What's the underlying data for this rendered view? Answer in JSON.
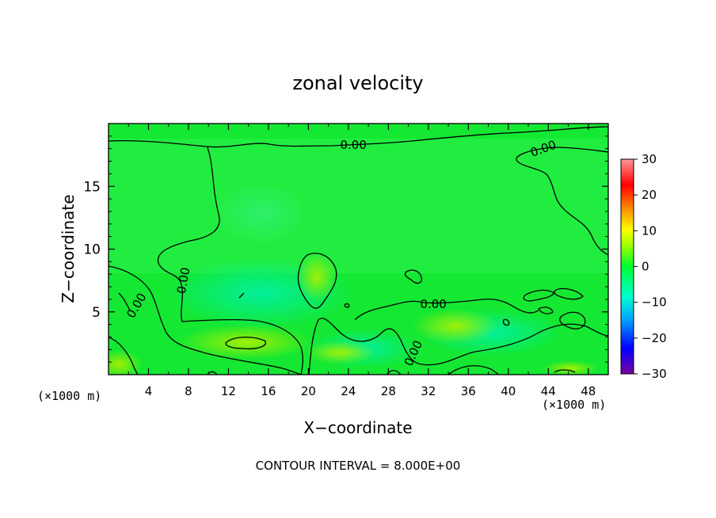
{
  "chart_data": {
    "type": "heatmap",
    "title": "zonal velocity",
    "xlabel": "X−coordinate",
    "ylabel": "Z−coordinate",
    "x_unit_left": "(×1000 m)",
    "x_unit_right": "(×1000 m)",
    "xlim": [
      0,
      50
    ],
    "ylim": [
      0,
      20
    ],
    "xticks": [
      "4",
      "8",
      "12",
      "16",
      "20",
      "24",
      "28",
      "32",
      "36",
      "40",
      "44",
      "48"
    ],
    "xtick_values": [
      4,
      8,
      12,
      16,
      20,
      24,
      28,
      32,
      36,
      40,
      44,
      48
    ],
    "yticks": [
      "5",
      "10",
      "15"
    ],
    "ytick_values": [
      5,
      10,
      15
    ],
    "colorbar": {
      "ticks": [
        "30",
        "20",
        "10",
        "0",
        "−10",
        "−20",
        "−30"
      ],
      "tick_values": [
        30,
        20,
        10,
        0,
        -10,
        -20,
        -30
      ],
      "range": [
        -30,
        30
      ],
      "colors": [
        "#7a00a0",
        "#0000ff",
        "#00a0ff",
        "#00ffe0",
        "#00ff40",
        "#a0ff00",
        "#ffff00",
        "#ff8000",
        "#ff0000",
        "#ff9090"
      ]
    },
    "contour_labels": [
      {
        "text": "0.00",
        "x": 24.5,
        "y": 18.3
      },
      {
        "text": "0.00",
        "x": 43.5,
        "y": 18.0
      },
      {
        "text": "0.00",
        "x": 7.5,
        "y": 7.5
      },
      {
        "text": "0.00",
        "x": 2.8,
        "y": 5.5
      },
      {
        "text": "0.00",
        "x": 32.5,
        "y": 5.6
      },
      {
        "text": "0.00",
        "x": 30.5,
        "y": 1.7
      }
    ],
    "annotation": "CONTOUR INTERVAL = 8.000E+00"
  }
}
